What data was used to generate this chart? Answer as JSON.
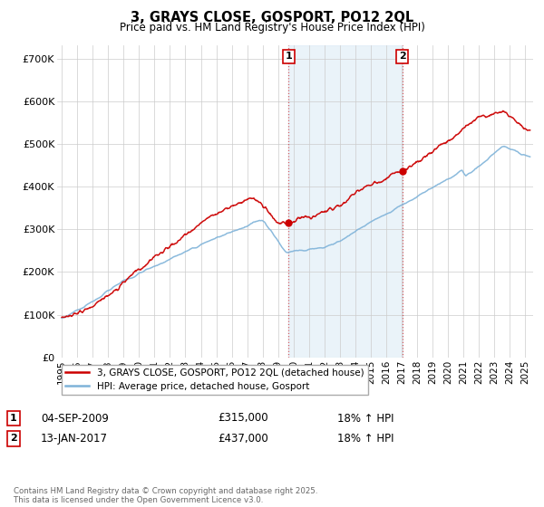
{
  "title": "3, GRAYS CLOSE, GOSPORT, PO12 2QL",
  "subtitle": "Price paid vs. HM Land Registry's House Price Index (HPI)",
  "yticks": [
    0,
    100000,
    200000,
    300000,
    400000,
    500000,
    600000,
    700000
  ],
  "ytick_labels": [
    "£0",
    "£100K",
    "£200K",
    "£300K",
    "£400K",
    "£500K",
    "£600K",
    "£700K"
  ],
  "ylim": [
    0,
    730000
  ],
  "xlim_start": 1994.7,
  "xlim_end": 2025.5,
  "marker1_x": 2009.67,
  "marker1_label": "1",
  "marker2_x": 2017.04,
  "marker2_label": "2",
  "shaded_region_color": "#daeaf5",
  "shaded_region_alpha": 0.55,
  "vertical_line_color": "#cc0000",
  "vertical_line_alpha": 0.6,
  "hpi_line_color": "#7fb3d9",
  "price_line_color": "#cc0000",
  "background_color": "#ffffff",
  "grid_color": "#cccccc",
  "legend_entry1": "3, GRAYS CLOSE, GOSPORT, PO12 2QL (detached house)",
  "legend_entry2": "HPI: Average price, detached house, Gosport",
  "annotation1_label": "1",
  "annotation1_date": "04-SEP-2009",
  "annotation1_price": "£315,000",
  "annotation1_hpi": "18% ↑ HPI",
  "annotation2_label": "2",
  "annotation2_date": "13-JAN-2017",
  "annotation2_price": "£437,000",
  "annotation2_hpi": "18% ↑ HPI",
  "footer": "Contains HM Land Registry data © Crown copyright and database right 2025.\nThis data is licensed under the Open Government Licence v3.0.",
  "xtick_years": [
    1995,
    1996,
    1997,
    1998,
    1999,
    2000,
    2001,
    2002,
    2003,
    2004,
    2005,
    2006,
    2007,
    2008,
    2009,
    2010,
    2011,
    2012,
    2013,
    2014,
    2015,
    2016,
    2017,
    2018,
    2019,
    2020,
    2021,
    2022,
    2023,
    2024,
    2025
  ]
}
